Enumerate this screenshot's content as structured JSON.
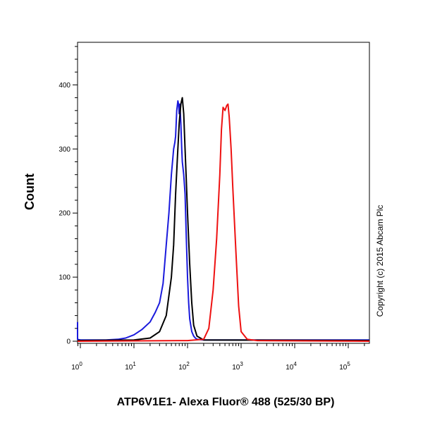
{
  "chart_data": {
    "type": "line",
    "xlabel": "ATP6V1E1- Alexa Fluor® 488 (525/30 BP)",
    "ylabel": "Count",
    "annotation": "Copyright (c) 2015 Abcam Plc",
    "x_scale": "log",
    "xlim": [
      0.5,
      300000
    ],
    "ylim": [
      0,
      460
    ],
    "x_ticks": [
      {
        "value": 1,
        "base": "10",
        "exp": "0"
      },
      {
        "value": 10,
        "base": "10",
        "exp": "1"
      },
      {
        "value": 100,
        "base": "10",
        "exp": "2"
      },
      {
        "value": 1000,
        "base": "10",
        "exp": "3"
      },
      {
        "value": 10000,
        "base": "10",
        "exp": "4"
      },
      {
        "value": 100000,
        "base": "10",
        "exp": "5"
      }
    ],
    "y_ticks": [
      0,
      100,
      200,
      300,
      400
    ],
    "series": [
      {
        "color": "#1a1adc",
        "x": [
          0.5,
          0.52,
          0.55,
          0.6,
          1,
          3,
          5,
          7,
          10,
          14,
          20,
          25,
          30,
          35,
          40,
          45,
          50,
          55,
          58,
          60,
          63,
          66,
          68,
          70,
          72,
          75,
          78,
          80,
          85,
          90,
          95,
          100,
          105,
          110,
          120,
          130,
          140,
          150,
          200,
          1000,
          10000,
          100000,
          300000
        ],
        "y": [
          30,
          25,
          12,
          3,
          2,
          2,
          3,
          5,
          10,
          18,
          30,
          45,
          60,
          90,
          150,
          200,
          260,
          300,
          310,
          320,
          360,
          375,
          370,
          355,
          370,
          340,
          300,
          280,
          260,
          230,
          160,
          100,
          60,
          35,
          15,
          8,
          5,
          3,
          2,
          2,
          2,
          2,
          2
        ]
      },
      {
        "color": "#000000",
        "x": [
          0.5,
          10,
          20,
          30,
          40,
          50,
          55,
          60,
          65,
          70,
          75,
          80,
          85,
          90,
          95,
          100,
          110,
          120,
          130,
          150,
          200,
          300000
        ],
        "y": [
          1,
          2,
          5,
          15,
          40,
          100,
          150,
          230,
          290,
          340,
          370,
          380,
          355,
          300,
          250,
          200,
          120,
          60,
          25,
          8,
          2,
          1
        ]
      },
      {
        "color": "#ee1111",
        "x": [
          0.5,
          100,
          200,
          250,
          300,
          350,
          400,
          430,
          460,
          500,
          540,
          570,
          600,
          620,
          650,
          700,
          800,
          900,
          1000,
          1300,
          2000,
          300000
        ],
        "y": [
          0,
          1,
          3,
          20,
          80,
          160,
          260,
          330,
          365,
          360,
          368,
          370,
          350,
          330,
          300,
          240,
          140,
          55,
          15,
          3,
          1,
          0
        ]
      }
    ]
  }
}
